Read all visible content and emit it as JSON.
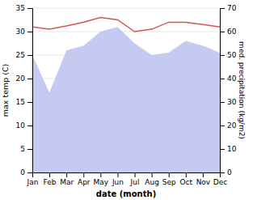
{
  "chart_data": {
    "type": "line",
    "categories": [
      "Jan",
      "Feb",
      "Mar",
      "Apr",
      "May",
      "Jun",
      "Jul",
      "Aug",
      "Sep",
      "Oct",
      "Nov",
      "Dec"
    ],
    "series": [
      {
        "type": "area",
        "axis": "y2",
        "color": "#c5caf0",
        "values": [
          50,
          34,
          52,
          54,
          60,
          62,
          55,
          50,
          51,
          56,
          54,
          51
        ]
      },
      {
        "type": "line",
        "color": "#d9534f",
        "values": [
          31.0,
          30.5,
          31.2,
          32.0,
          33.0,
          32.5,
          30.0,
          30.5,
          32.0,
          32.0,
          31.5,
          31.0
        ]
      }
    ],
    "xlabel": "date (month)",
    "ylabel": "max temp (C)",
    "y2label": "med. precipitation (kg/m2)",
    "ylim": [
      0,
      35
    ],
    "yticks": [
      0,
      5,
      10,
      15,
      20,
      25,
      30,
      35
    ],
    "y2lim": [
      0,
      70
    ],
    "y2ticks": [
      0,
      10,
      20,
      30,
      40,
      50,
      60,
      70
    ],
    "grid": true
  }
}
